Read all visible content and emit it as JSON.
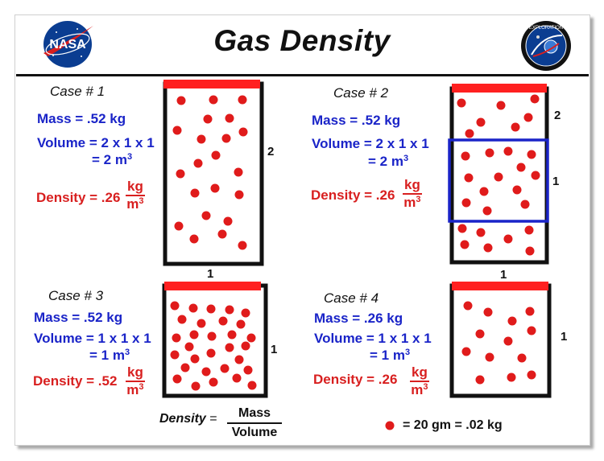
{
  "title": "Gas Density",
  "logos": {
    "left": "NASA",
    "right_ring": "EXPLORATION"
  },
  "colors": {
    "accent_red": "#d81f1f",
    "text_blue": "#1a24c8",
    "highlight_blue": "#1a24c8"
  },
  "cases": [
    {
      "label": "Case  # 1",
      "mass": "Mass =  .52  kg",
      "volume_l1": "Volume = 2 x 1 x 1",
      "volume_l2": "= 2  m",
      "density": "Density = .26",
      "unit_num": "kg",
      "unit_den": "m",
      "height_label": "2",
      "width_label": "1"
    },
    {
      "label": "Case  # 2",
      "mass": "Mass =  .52  kg",
      "volume_l1": "Volume = 2 x 1 x 1",
      "volume_l2": "= 2  m",
      "density": "Density = .26",
      "unit_num": "kg",
      "unit_den": "m",
      "height_label": "2",
      "width_label": "1",
      "sub_label": "1"
    },
    {
      "label": "Case  # 3",
      "mass": "Mass =  .52  kg",
      "volume_l1": "Volume = 1 x 1 x 1",
      "volume_l2": "= 1  m",
      "density": "Density = .52",
      "unit_num": "kg",
      "unit_den": "m",
      "height_label": "1"
    },
    {
      "label": "Case  # 4",
      "mass": "Mass =  .26  kg",
      "volume_l1": "Volume = 1 x 1 x 1",
      "volume_l2": "= 1  m",
      "density": "Density = .26",
      "unit_num": "kg",
      "unit_den": "m",
      "height_label": "1"
    }
  ],
  "exponent": "3",
  "formula": {
    "lhs": "Density",
    "eq": "=",
    "num": "Mass",
    "den": "Volume"
  },
  "legend": "=  20 gm  =  .02 kg"
}
